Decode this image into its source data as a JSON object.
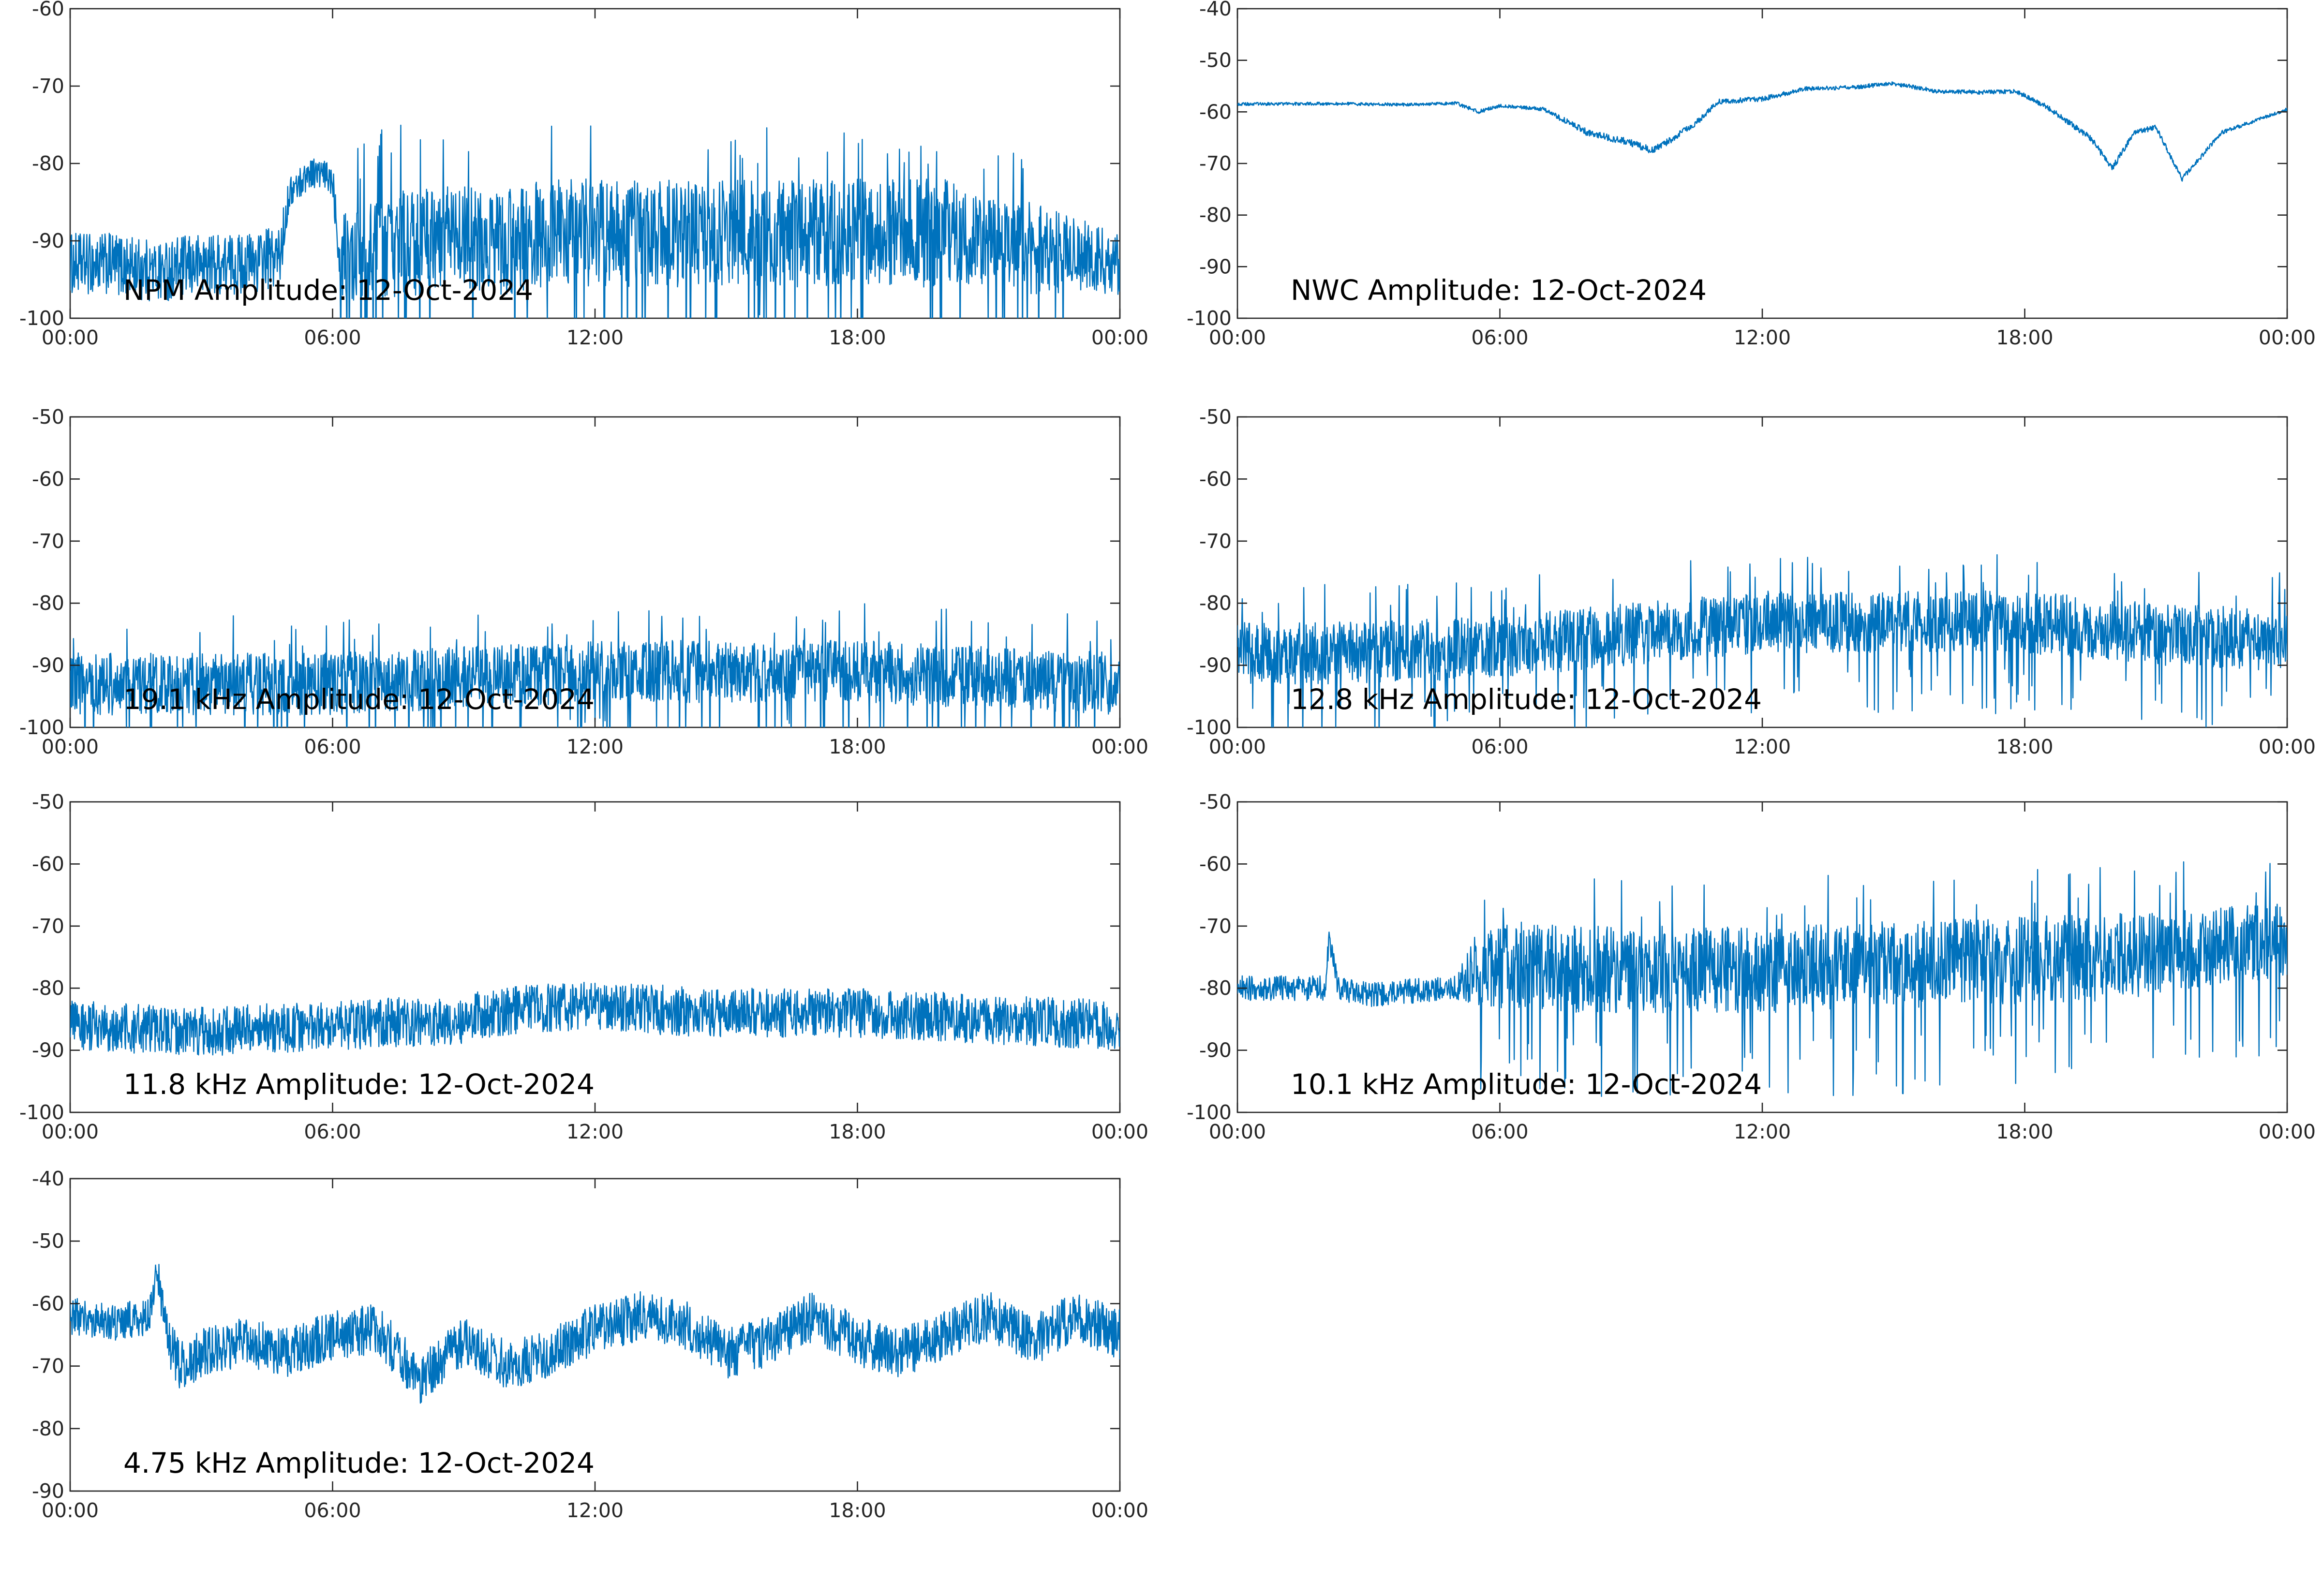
{
  "chart_data": [
    {
      "type": "line",
      "title": "NPM Amplitude: 12-Oct-2024",
      "xlim": [
        0,
        24
      ],
      "ylim": [
        -100,
        -60
      ],
      "xticks": [
        "00:00",
        "06:00",
        "12:00",
        "18:00",
        "00:00"
      ],
      "yticks": [
        "-60",
        "-70",
        "-80",
        "-90",
        "-100"
      ],
      "series": [
        {
          "color": "#0072bd",
          "x": [
            0,
            1,
            2,
            3,
            4,
            4.8,
            5.0,
            5.5,
            6.0,
            6.2,
            7,
            8,
            9,
            10,
            11,
            12,
            13,
            14,
            15,
            16,
            17,
            18,
            19,
            20,
            21,
            22,
            23,
            24
          ],
          "y": [
            -93,
            -93,
            -94,
            -93,
            -93,
            -92,
            -84,
            -81,
            -82,
            -92,
            -91,
            -90,
            -90,
            -90,
            -89,
            -89,
            -89,
            -89,
            -89,
            -89,
            -89,
            -89,
            -89,
            -89,
            -90,
            -91,
            -92,
            -93
          ],
          "noise": [
            4,
            4,
            4,
            4,
            4,
            4,
            2,
            2,
            2,
            6,
            7,
            7,
            7,
            7,
            7,
            7,
            7,
            7,
            7,
            7,
            7,
            7,
            7,
            7,
            6,
            6,
            5,
            4
          ]
        }
      ]
    },
    {
      "type": "line",
      "title": "NWC Amplitude: 12-Oct-2024",
      "xlim": [
        0,
        24
      ],
      "ylim": [
        -100,
        -40
      ],
      "xticks": [
        "00:00",
        "06:00",
        "12:00",
        "18:00",
        "00:00"
      ],
      "yticks": [
        "-40",
        "-50",
        "-60",
        "-70",
        "-80",
        "-90",
        "-100"
      ],
      "series": [
        {
          "color": "#0072bd",
          "x": [
            0,
            2,
            4,
            5,
            5.5,
            6,
            7,
            8,
            9,
            9.5,
            10,
            10.5,
            11,
            12,
            13,
            14,
            15,
            16,
            17,
            17.8,
            18.5,
            19.5,
            20.0,
            20.5,
            21.0,
            21.3,
            21.6,
            22.5,
            24
          ],
          "y": [
            -58.5,
            -58.4,
            -58.6,
            -58.3,
            -60,
            -58.8,
            -59.5,
            -64,
            -66,
            -67.5,
            -65,
            -62,
            -58,
            -57.5,
            -55.5,
            -55.3,
            -54.5,
            -56,
            -56.2,
            -56,
            -59,
            -65,
            -71,
            -64,
            -63,
            -68,
            -73,
            -64,
            -59.5
          ],
          "noise": [
            0.3,
            0.3,
            0.3,
            0.3,
            0.4,
            0.3,
            0.4,
            0.7,
            0.7,
            0.7,
            0.7,
            0.6,
            0.5,
            0.5,
            0.4,
            0.4,
            0.4,
            0.4,
            0.4,
            0.4,
            0.5,
            0.6,
            0.7,
            0.5,
            0.5,
            0.5,
            0.5,
            0.4,
            0.3
          ]
        }
      ]
    },
    {
      "type": "line",
      "title": "19.1 kHz Amplitude: 12-Oct-2024",
      "xlim": [
        0,
        24
      ],
      "ylim": [
        -100,
        -50
      ],
      "xticks": [
        "00:00",
        "06:00",
        "12:00",
        "18:00",
        "00:00"
      ],
      "yticks": [
        "-50",
        "-60",
        "-70",
        "-80",
        "-90",
        "-100"
      ],
      "series": [
        {
          "color": "#0072bd",
          "x": [
            0,
            3,
            6,
            9,
            12,
            15,
            18,
            21,
            24
          ],
          "y": [
            -93,
            -93,
            -93,
            -92,
            -91,
            -91,
            -91,
            -92,
            -93
          ],
          "noise": [
            5,
            5,
            5,
            5,
            5,
            5,
            5,
            5,
            5
          ]
        }
      ]
    },
    {
      "type": "line",
      "title": "12.8 kHz Amplitude: 12-Oct-2024",
      "xlim": [
        0,
        24
      ],
      "ylim": [
        -100,
        -50
      ],
      "xticks": [
        "00:00",
        "06:00",
        "12:00",
        "18:00",
        "00:00"
      ],
      "yticks": [
        "-50",
        "-60",
        "-70",
        "-80",
        "-90",
        "-100"
      ],
      "series": [
        {
          "color": "#0072bd",
          "x": [
            0,
            3,
            6,
            9,
            12,
            15,
            18,
            21,
            24
          ],
          "y": [
            -88,
            -88,
            -87,
            -85,
            -83,
            -83,
            -83,
            -85,
            -86
          ],
          "noise": [
            5,
            5,
            5,
            5,
            5,
            5,
            5,
            5,
            5
          ]
        }
      ]
    },
    {
      "type": "line",
      "title": "11.8 kHz Amplitude: 12-Oct-2024",
      "xlim": [
        0,
        24
      ],
      "ylim": [
        -100,
        -50
      ],
      "xticks": [
        "00:00",
        "06:00",
        "12:00",
        "18:00",
        "00:00"
      ],
      "yticks": [
        "-50",
        "-60",
        "-70",
        "-80",
        "-90",
        "-100"
      ],
      "series": [
        {
          "color": "#0072bd",
          "x": [
            0,
            3,
            6,
            9,
            10.5,
            12,
            15,
            18,
            21,
            24
          ],
          "y": [
            -86,
            -87,
            -86,
            -85,
            -83,
            -83,
            -84,
            -84,
            -85,
            -86
          ],
          "noise": [
            4,
            4,
            4,
            4,
            4,
            4,
            4,
            4,
            4,
            4
          ]
        }
      ]
    },
    {
      "type": "line",
      "title": "10.1 kHz Amplitude: 12-Oct-2024",
      "xlim": [
        0,
        24
      ],
      "ylim": [
        -100,
        -50
      ],
      "xticks": [
        "00:00",
        "06:00",
        "12:00",
        "18:00",
        "00:00"
      ],
      "yticks": [
        "-50",
        "-60",
        "-70",
        "-80",
        "-90",
        "-100"
      ],
      "series": [
        {
          "color": "#0072bd",
          "x": [
            0,
            2,
            2.1,
            2.3,
            3,
            5,
            5.6,
            8,
            12,
            16,
            20,
            24
          ],
          "y": [
            -80,
            -80,
            -72,
            -80,
            -81,
            -80,
            -76,
            -77,
            -77,
            -76,
            -75,
            -72
          ],
          "noise": [
            2,
            2,
            2,
            2,
            2,
            2,
            7,
            7,
            7,
            7,
            7,
            6
          ]
        }
      ]
    },
    {
      "type": "line",
      "title": "4.75 kHz Amplitude: 12-Oct-2024",
      "xlim": [
        0,
        24
      ],
      "ylim": [
        -90,
        -40
      ],
      "xticks": [
        "00:00",
        "06:00",
        "12:00",
        "18:00",
        "00:00"
      ],
      "yticks": [
        "-40",
        "-50",
        "-60",
        "-70",
        "-80",
        "-90"
      ],
      "series": [
        {
          "color": "#0072bd",
          "x": [
            0,
            1,
            1.8,
            2.0,
            2.2,
            2.5,
            3,
            4,
            5,
            6,
            7,
            8,
            9,
            10,
            11,
            12,
            13,
            14,
            15,
            16,
            17,
            18,
            19,
            20,
            21,
            22,
            23,
            24
          ],
          "y": [
            -62,
            -63,
            -62,
            -55,
            -65,
            -70,
            -68,
            -66,
            -68,
            -65,
            -64,
            -72,
            -66,
            -70,
            -68,
            -64,
            -62,
            -63,
            -68,
            -66,
            -62,
            -66,
            -68,
            -65,
            -62,
            -66,
            -62,
            -65
          ],
          "noise": [
            3,
            3,
            3,
            3,
            4,
            4,
            4,
            4,
            4,
            4,
            4,
            4,
            4,
            4,
            4,
            4,
            4,
            4,
            4,
            4,
            4,
            4,
            4,
            4,
            4,
            4,
            4,
            4
          ]
        }
      ]
    }
  ]
}
